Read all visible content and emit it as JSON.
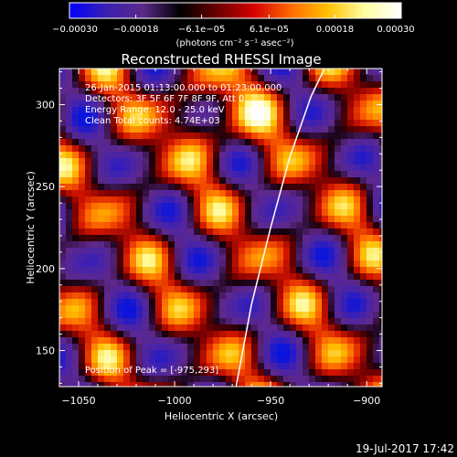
{
  "chart_data": {
    "type": "heatmap",
    "title": "Reconstructed RHESSI Image",
    "xlabel": "Heliocentric X (arcsec)",
    "ylabel": "Heliocentric Y (arcsec)",
    "xlim": [
      -1060,
      -892
    ],
    "ylim": [
      128,
      322
    ],
    "x_ticks": [
      -1050,
      -1000,
      -950,
      -900
    ],
    "x_tick_labels": [
      "−1050",
      "−1000",
      "−950",
      "−900"
    ],
    "y_ticks": [
      150,
      200,
      250,
      300
    ],
    "y_tick_labels": [
      "150",
      "200",
      "250",
      "300"
    ],
    "colorbar": {
      "range": [
        -0.0003,
        0.0003
      ],
      "ticks": [
        -0.0003,
        -0.00018,
        -6.1e-05,
        6.1e-05,
        0.00018,
        0.0003
      ],
      "tick_labels": [
        "−0.00030",
        "−0.00018",
        "−6.1e−05",
        "6.1e−05",
        "0.00018",
        "0.00030"
      ],
      "label": "(photons cm⁻² s⁻¹ asec⁻²)",
      "colormap": [
        "#0000ff",
        "#3a1fb0",
        "#5a2a8a",
        "#000000",
        "#6a0000",
        "#d40000",
        "#ff6a00",
        "#ffc000",
        "#ffffa0",
        "#ffffff"
      ]
    },
    "annotations": [
      "26-Jan-2015 01:13:00.000 to 01:23:00.000",
      "Detectors: 3F 5F 6F 7F 8F 9F, Att 0",
      "Energy Range: 12.0 - 25.0 keV",
      "Clean    Total counts: 4.74E+03"
    ],
    "peak_label": "Position of Peak = [-975,293]",
    "peak": {
      "x": -975,
      "y": 293
    },
    "limb_line": [
      {
        "x": -968,
        "y": 128
      },
      {
        "x": -960,
        "y": 178
      },
      {
        "x": -950,
        "y": 225
      },
      {
        "x": -940,
        "y": 268
      },
      {
        "x": -929,
        "y": 305
      },
      {
        "x": -922,
        "y": 322
      }
    ]
  },
  "footer": {
    "timestamp": "19-Jul-2017 17:42"
  }
}
